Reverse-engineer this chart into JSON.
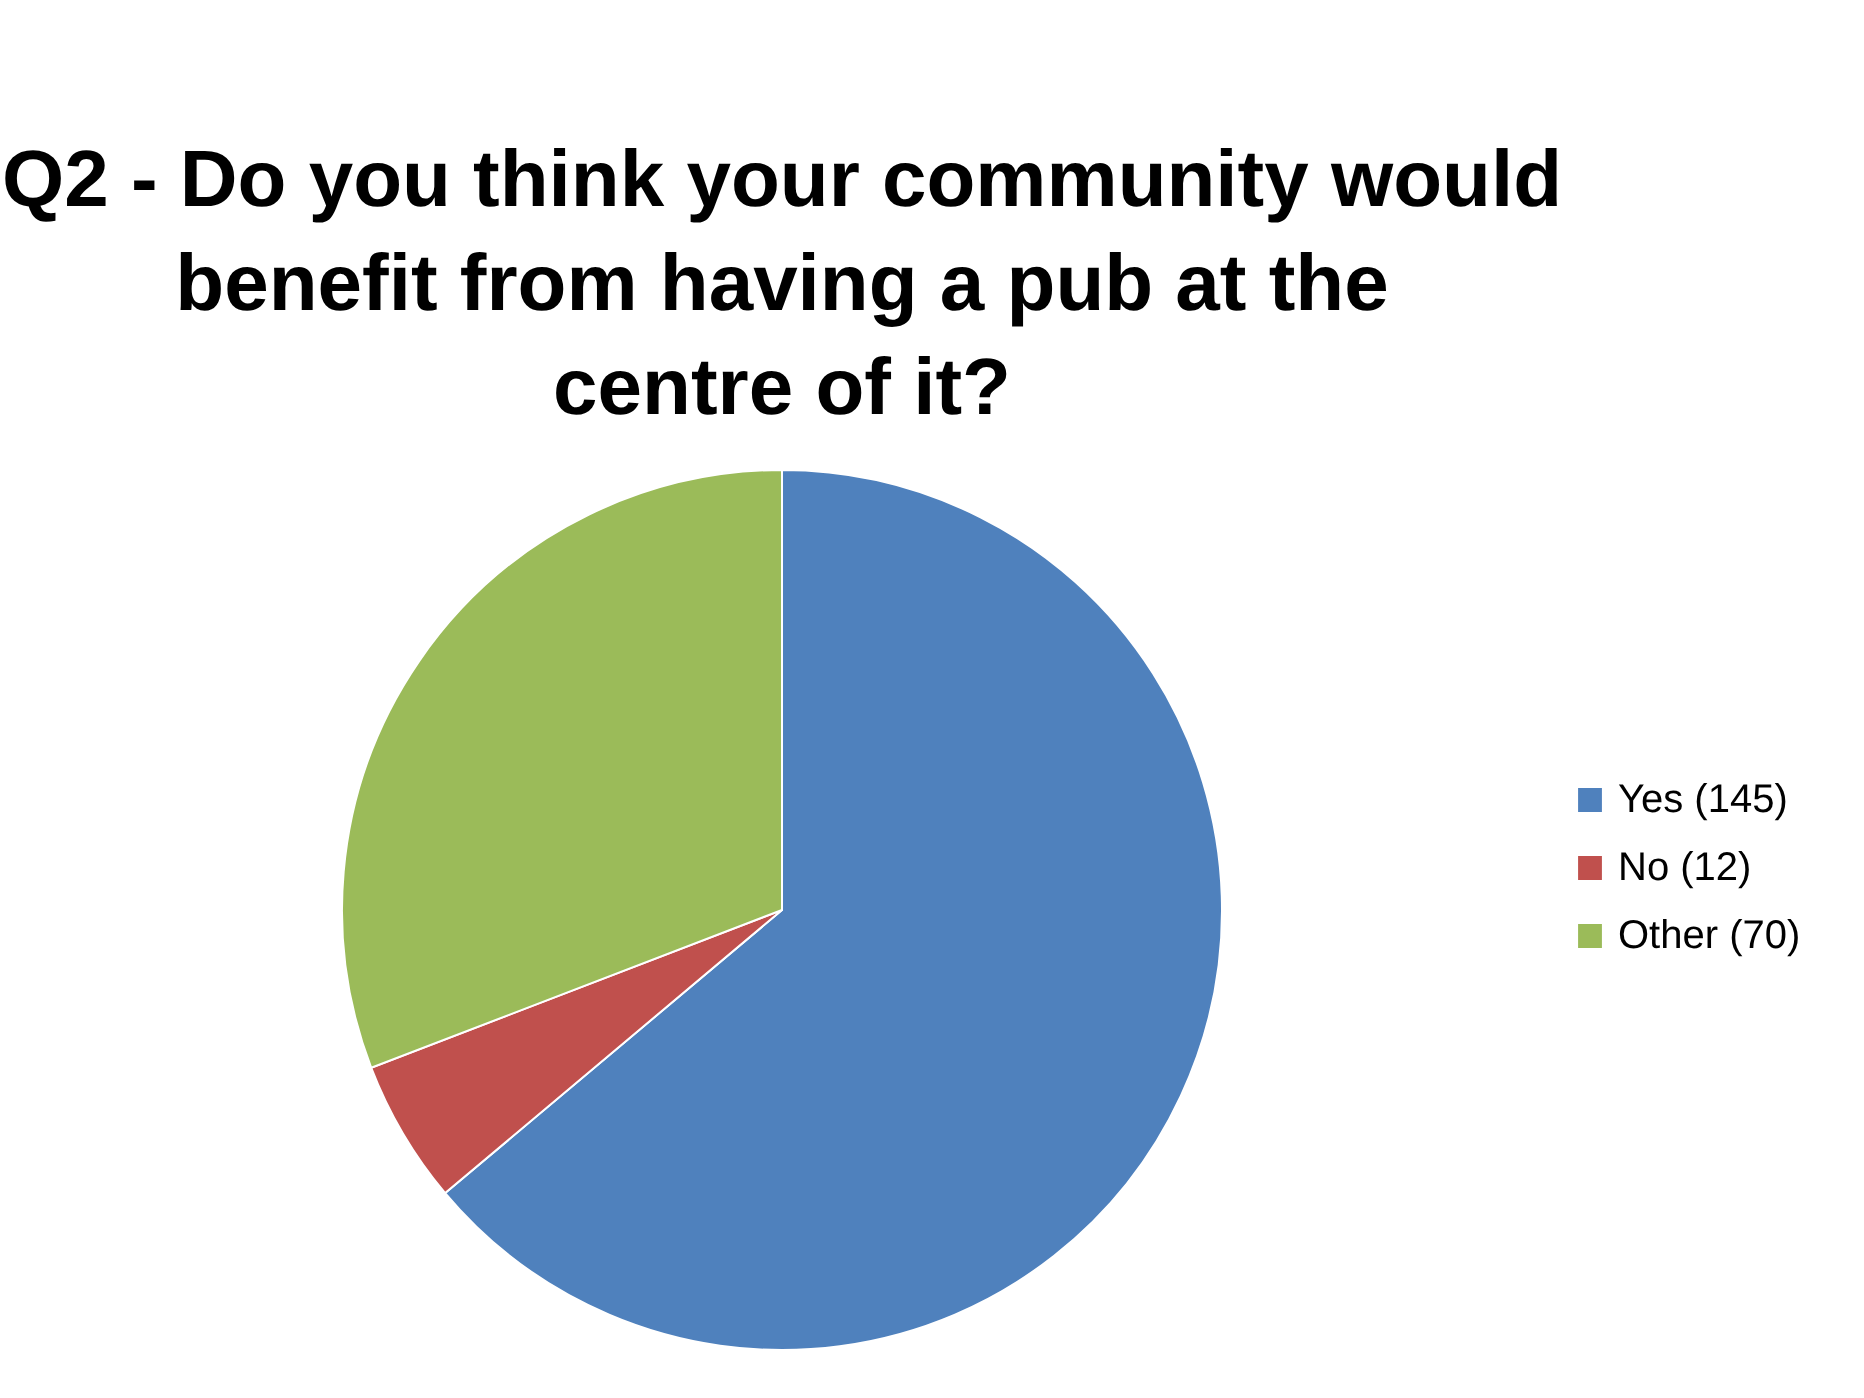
{
  "chart_data": {
    "type": "pie",
    "title": "Q2 - Do you think your community would benefit from having a pub at the centre of it?",
    "categories": [
      "Yes (145)",
      "No (12)",
      "Other (70)"
    ],
    "values": [
      145,
      12,
      70
    ],
    "colors": [
      "#4f81bd",
      "#c0504d",
      "#9bbb59"
    ],
    "legend": "right"
  }
}
